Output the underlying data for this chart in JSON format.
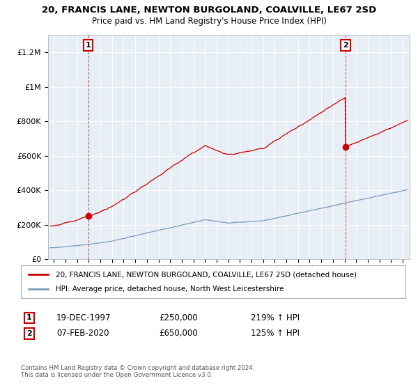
{
  "title": "20, FRANCIS LANE, NEWTON BURGOLAND, COALVILLE, LE67 2SD",
  "subtitle": "Price paid vs. HM Land Registry's House Price Index (HPI)",
  "red_line_label": "20, FRANCIS LANE, NEWTON BURGOLAND, COALVILLE, LE67 2SD (detached house)",
  "blue_line_label": "HPI: Average price, detached house, North West Leicestershire",
  "transaction1_date": "19-DEC-1997",
  "transaction1_price": "£250,000",
  "transaction1_hpi": "219% ↑ HPI",
  "transaction2_date": "07-FEB-2020",
  "transaction2_price": "£650,000",
  "transaction2_hpi": "125% ↑ HPI",
  "footnote": "Contains HM Land Registry data © Crown copyright and database right 2024.\nThis data is licensed under the Open Government Licence v3.0.",
  "ylim": [
    0,
    1300000
  ],
  "yticks": [
    0,
    200000,
    400000,
    600000,
    800000,
    1000000,
    1200000
  ],
  "ytick_labels": [
    "£0",
    "£200K",
    "£400K",
    "£600K",
    "£800K",
    "£1M",
    "£1.2M"
  ],
  "red_color": "#cc0000",
  "blue_color": "#7799bb",
  "plot_bg_color": "#e8eef5",
  "background_color": "#ffffff",
  "grid_color": "#ffffff",
  "t1_year": 1997.96,
  "t2_year": 2020.08,
  "sale1_price": 250000,
  "sale2_price": 650000
}
